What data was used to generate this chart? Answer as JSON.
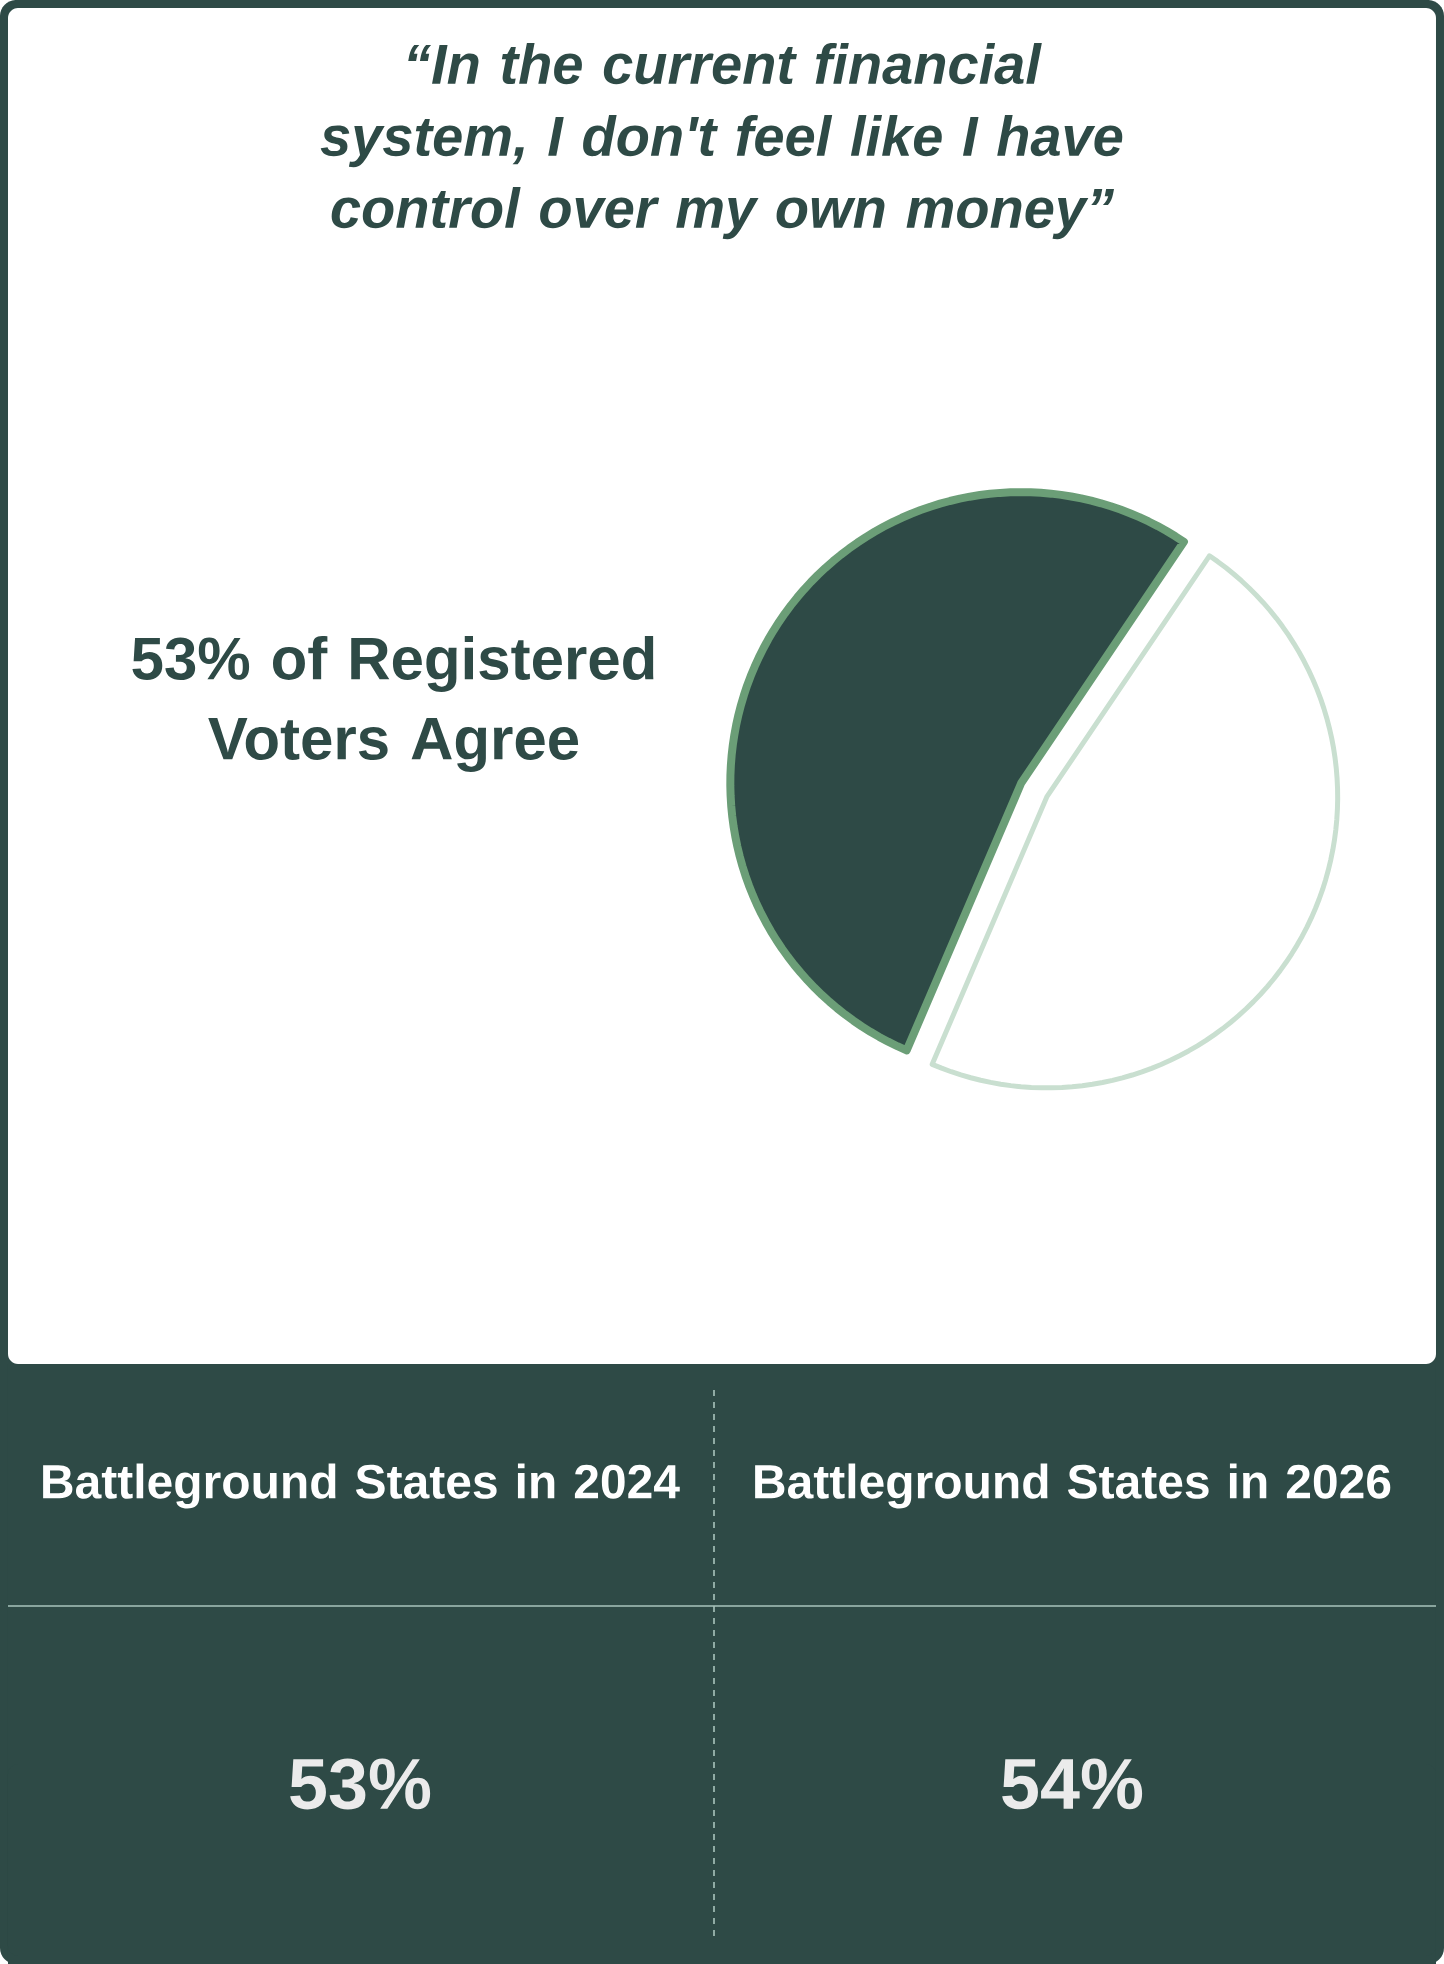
{
  "chart_data": {
    "type": "pie",
    "title": "“In the current financial system, I don't feel like I have control over my own money”",
    "categories": [
      null,
      null
    ],
    "values": [
      53,
      47
    ],
    "colors": [
      "#2e4a46",
      "#ffffff"
    ],
    "annotations": [
      "53% of Registered Voters Agree",
      "Battleground States in 2024",
      "Battleground States in 2026",
      "53%",
      "54%"
    ]
  }
}
